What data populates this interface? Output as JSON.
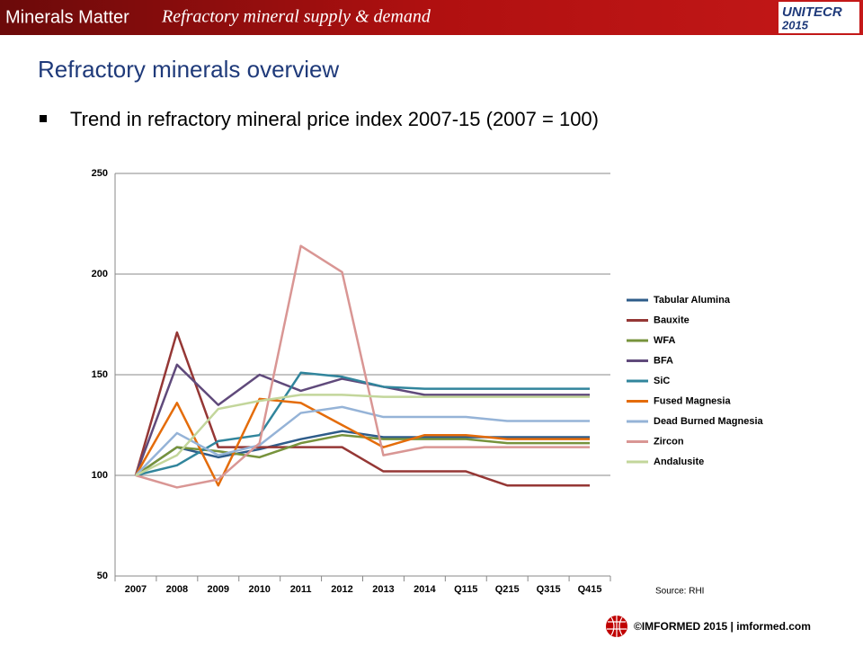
{
  "header": {
    "brand": "Minerals Matter",
    "tagline": "Refractory mineral supply & demand",
    "logo_name": "UNITECR",
    "logo_year": "2015"
  },
  "slide_title": "Refractory minerals overview",
  "bullet": "Trend in refractory mineral price index 2007-15 (2007 = 100)",
  "source": "Source: RHI",
  "footer": "©IMFORMED 2015  | imformed.com",
  "chart_data": {
    "type": "line",
    "categories": [
      "2007",
      "2008",
      "2009",
      "2010",
      "2011",
      "2012",
      "2013",
      "2014",
      "Q115",
      "Q215",
      "Q315",
      "Q415"
    ],
    "series": [
      {
        "name": "Tabular Alumina",
        "color": "#2e5c8a",
        "values": [
          100,
          114,
          109,
          113,
          118,
          122,
          119,
          119,
          119,
          119,
          119,
          119
        ]
      },
      {
        "name": "Bauxite",
        "color": "#953735",
        "values": [
          100,
          171,
          114,
          114,
          114,
          114,
          102,
          102,
          102,
          95,
          95,
          95
        ]
      },
      {
        "name": "WFA",
        "color": "#77933c",
        "values": [
          100,
          114,
          112,
          109,
          116,
          120,
          118,
          118,
          118,
          116,
          116,
          116
        ]
      },
      {
        "name": "BFA",
        "color": "#604a7b",
        "values": [
          100,
          155,
          135,
          150,
          142,
          148,
          144,
          140,
          140,
          140,
          140,
          140
        ]
      },
      {
        "name": "SiC",
        "color": "#31859c",
        "values": [
          100,
          105,
          117,
          120,
          151,
          149,
          144,
          143,
          143,
          143,
          143,
          143
        ]
      },
      {
        "name": "Fused Magnesia",
        "color": "#e46c0a",
        "values": [
          100,
          136,
          95,
          138,
          136,
          125,
          114,
          120,
          120,
          118,
          118,
          118
        ]
      },
      {
        "name": "Dead Burned Magnesia",
        "color": "#95b3d7",
        "values": [
          100,
          121,
          110,
          115,
          131,
          134,
          129,
          129,
          129,
          127,
          127,
          127
        ]
      },
      {
        "name": "Zircon",
        "color": "#d99694",
        "values": [
          100,
          94,
          98,
          116,
          214,
          201,
          110,
          114,
          114,
          114,
          114,
          114
        ]
      },
      {
        "name": "Andalusite",
        "color": "#c3d69b",
        "values": [
          100,
          110,
          133,
          137,
          140,
          140,
          139,
          139,
          139,
          139,
          139,
          139
        ]
      }
    ],
    "ylim": [
      50,
      250
    ],
    "yticks": [
      50,
      100,
      150,
      200,
      250
    ],
    "grid": true,
    "legend": "right"
  }
}
